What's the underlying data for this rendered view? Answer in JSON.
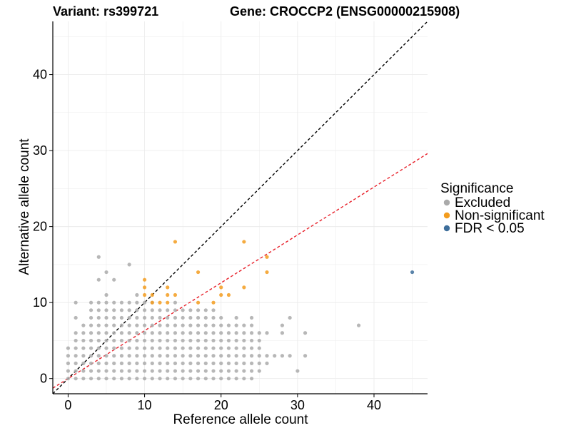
{
  "header": {
    "variant": "Variant: rs399721",
    "gene": "Gene: CROCCP2 (ENSG00000215908)"
  },
  "chart_data": {
    "type": "scatter",
    "xlabel": "Reference allele count",
    "ylabel": "Alternative allele count",
    "xlim": [
      -2,
      47
    ],
    "ylim": [
      -2,
      47
    ],
    "x_ticks": [
      0,
      10,
      20,
      30,
      40
    ],
    "y_ticks": [
      0,
      10,
      20,
      30,
      40
    ],
    "grid": true,
    "legend": {
      "title": "Significance",
      "position": "right",
      "entries": [
        {
          "label": "Excluded",
          "color": "#AAAAAA"
        },
        {
          "label": "Non-significant",
          "color": "#F39C1E"
        },
        {
          "label": "FDR < 0.05",
          "color": "#3E6E9B"
        }
      ]
    },
    "reference_lines": [
      {
        "slope": 1,
        "intercept": 0,
        "color": "#000000",
        "style": "dashed"
      },
      {
        "slope": 0.63,
        "intercept": 0,
        "color": "#E8202A",
        "style": "dashed"
      }
    ],
    "series": [
      {
        "name": "Excluded",
        "color": "#AAAAAA",
        "points": [
          [
            0,
            0
          ],
          [
            0,
            1
          ],
          [
            0,
            2
          ],
          [
            0,
            3
          ],
          [
            0,
            4
          ],
          [
            1,
            0
          ],
          [
            1,
            1
          ],
          [
            1,
            2
          ],
          [
            1,
            3
          ],
          [
            1,
            4
          ],
          [
            1,
            5
          ],
          [
            1,
            6
          ],
          [
            1,
            8
          ],
          [
            1,
            10
          ],
          [
            2,
            0
          ],
          [
            2,
            1
          ],
          [
            2,
            2
          ],
          [
            2,
            3
          ],
          [
            2,
            4
          ],
          [
            2,
            5
          ],
          [
            2,
            6
          ],
          [
            2,
            7
          ],
          [
            3,
            0
          ],
          [
            3,
            1
          ],
          [
            3,
            2
          ],
          [
            3,
            3
          ],
          [
            3,
            4
          ],
          [
            3,
            5
          ],
          [
            3,
            6
          ],
          [
            3,
            7
          ],
          [
            3,
            8
          ],
          [
            3,
            9
          ],
          [
            3,
            10
          ],
          [
            4,
            0
          ],
          [
            4,
            1
          ],
          [
            4,
            2
          ],
          [
            4,
            3
          ],
          [
            4,
            4
          ],
          [
            4,
            5
          ],
          [
            4,
            6
          ],
          [
            4,
            7
          ],
          [
            4,
            8
          ],
          [
            4,
            9
          ],
          [
            4,
            10
          ],
          [
            4,
            13
          ],
          [
            4,
            16
          ],
          [
            5,
            0
          ],
          [
            5,
            1
          ],
          [
            5,
            2
          ],
          [
            5,
            3
          ],
          [
            5,
            4
          ],
          [
            5,
            5
          ],
          [
            5,
            6
          ],
          [
            5,
            7
          ],
          [
            5,
            8
          ],
          [
            5,
            9
          ],
          [
            5,
            10
          ],
          [
            5,
            11
          ],
          [
            5,
            14
          ],
          [
            6,
            0
          ],
          [
            6,
            1
          ],
          [
            6,
            2
          ],
          [
            6,
            3
          ],
          [
            6,
            4
          ],
          [
            6,
            5
          ],
          [
            6,
            6
          ],
          [
            6,
            7
          ],
          [
            6,
            8
          ],
          [
            6,
            9
          ],
          [
            6,
            10
          ],
          [
            6,
            13
          ],
          [
            7,
            0
          ],
          [
            7,
            1
          ],
          [
            7,
            2
          ],
          [
            7,
            3
          ],
          [
            7,
            4
          ],
          [
            7,
            5
          ],
          [
            7,
            6
          ],
          [
            7,
            7
          ],
          [
            7,
            8
          ],
          [
            7,
            9
          ],
          [
            7,
            10
          ],
          [
            8,
            0
          ],
          [
            8,
            1
          ],
          [
            8,
            2
          ],
          [
            8,
            3
          ],
          [
            8,
            4
          ],
          [
            8,
            5
          ],
          [
            8,
            6
          ],
          [
            8,
            7
          ],
          [
            8,
            8
          ],
          [
            8,
            9
          ],
          [
            8,
            10
          ],
          [
            8,
            15
          ],
          [
            9,
            0
          ],
          [
            9,
            1
          ],
          [
            9,
            2
          ],
          [
            9,
            3
          ],
          [
            9,
            4
          ],
          [
            9,
            5
          ],
          [
            9,
            6
          ],
          [
            9,
            7
          ],
          [
            9,
            8
          ],
          [
            9,
            9
          ],
          [
            9,
            10
          ],
          [
            9,
            11
          ],
          [
            10,
            0
          ],
          [
            10,
            1
          ],
          [
            10,
            2
          ],
          [
            10,
            3
          ],
          [
            10,
            4
          ],
          [
            10,
            5
          ],
          [
            10,
            6
          ],
          [
            10,
            7
          ],
          [
            10,
            8
          ],
          [
            10,
            9
          ],
          [
            10,
            10
          ],
          [
            11,
            0
          ],
          [
            11,
            1
          ],
          [
            11,
            2
          ],
          [
            11,
            3
          ],
          [
            11,
            4
          ],
          [
            11,
            5
          ],
          [
            11,
            6
          ],
          [
            11,
            7
          ],
          [
            11,
            8
          ],
          [
            11,
            9
          ],
          [
            11,
            10
          ],
          [
            12,
            0
          ],
          [
            12,
            1
          ],
          [
            12,
            2
          ],
          [
            12,
            3
          ],
          [
            12,
            4
          ],
          [
            12,
            5
          ],
          [
            12,
            6
          ],
          [
            12,
            7
          ],
          [
            12,
            8
          ],
          [
            12,
            9
          ],
          [
            13,
            0
          ],
          [
            13,
            1
          ],
          [
            13,
            2
          ],
          [
            13,
            3
          ],
          [
            13,
            4
          ],
          [
            13,
            5
          ],
          [
            13,
            6
          ],
          [
            13,
            7
          ],
          [
            13,
            8
          ],
          [
            13,
            9
          ],
          [
            14,
            0
          ],
          [
            14,
            1
          ],
          [
            14,
            2
          ],
          [
            14,
            3
          ],
          [
            14,
            4
          ],
          [
            14,
            5
          ],
          [
            14,
            6
          ],
          [
            14,
            7
          ],
          [
            14,
            8
          ],
          [
            14,
            9
          ],
          [
            14,
            10
          ],
          [
            15,
            0
          ],
          [
            15,
            1
          ],
          [
            15,
            2
          ],
          [
            15,
            3
          ],
          [
            15,
            4
          ],
          [
            15,
            5
          ],
          [
            15,
            6
          ],
          [
            15,
            7
          ],
          [
            15,
            8
          ],
          [
            15,
            9
          ],
          [
            16,
            0
          ],
          [
            16,
            1
          ],
          [
            16,
            2
          ],
          [
            16,
            3
          ],
          [
            16,
            4
          ],
          [
            16,
            5
          ],
          [
            16,
            6
          ],
          [
            16,
            7
          ],
          [
            16,
            8
          ],
          [
            16,
            9
          ],
          [
            17,
            0
          ],
          [
            17,
            1
          ],
          [
            17,
            2
          ],
          [
            17,
            3
          ],
          [
            17,
            4
          ],
          [
            17,
            5
          ],
          [
            17,
            6
          ],
          [
            17,
            7
          ],
          [
            17,
            8
          ],
          [
            17,
            9
          ],
          [
            18,
            0
          ],
          [
            18,
            1
          ],
          [
            18,
            2
          ],
          [
            18,
            3
          ],
          [
            18,
            4
          ],
          [
            18,
            5
          ],
          [
            18,
            6
          ],
          [
            18,
            7
          ],
          [
            18,
            8
          ],
          [
            18,
            9
          ],
          [
            19,
            0
          ],
          [
            19,
            1
          ],
          [
            19,
            2
          ],
          [
            19,
            3
          ],
          [
            19,
            4
          ],
          [
            19,
            5
          ],
          [
            19,
            6
          ],
          [
            19,
            7
          ],
          [
            19,
            8
          ],
          [
            19,
            9
          ],
          [
            20,
            0
          ],
          [
            20,
            1
          ],
          [
            20,
            2
          ],
          [
            20,
            3
          ],
          [
            20,
            4
          ],
          [
            20,
            5
          ],
          [
            20,
            6
          ],
          [
            20,
            7
          ],
          [
            20,
            8
          ],
          [
            21,
            0
          ],
          [
            21,
            1
          ],
          [
            21,
            2
          ],
          [
            21,
            3
          ],
          [
            21,
            4
          ],
          [
            21,
            5
          ],
          [
            21,
            6
          ],
          [
            21,
            7
          ],
          [
            22,
            0
          ],
          [
            22,
            1
          ],
          [
            22,
            2
          ],
          [
            22,
            3
          ],
          [
            22,
            4
          ],
          [
            22,
            5
          ],
          [
            22,
            6
          ],
          [
            22,
            7
          ],
          [
            22,
            8
          ],
          [
            23,
            0
          ],
          [
            23,
            1
          ],
          [
            23,
            2
          ],
          [
            23,
            3
          ],
          [
            23,
            4
          ],
          [
            23,
            5
          ],
          [
            23,
            6
          ],
          [
            23,
            7
          ],
          [
            24,
            0
          ],
          [
            24,
            1
          ],
          [
            24,
            2
          ],
          [
            24,
            3
          ],
          [
            24,
            4
          ],
          [
            24,
            5
          ],
          [
            24,
            6
          ],
          [
            24,
            7
          ],
          [
            24,
            8
          ],
          [
            25,
            1
          ],
          [
            25,
            2
          ],
          [
            25,
            3
          ],
          [
            25,
            4
          ],
          [
            25,
            5
          ],
          [
            25,
            6
          ],
          [
            26,
            2
          ],
          [
            26,
            3
          ],
          [
            26,
            6
          ],
          [
            27,
            3
          ],
          [
            28,
            3
          ],
          [
            28,
            6
          ],
          [
            28,
            7
          ],
          [
            29,
            3
          ],
          [
            29,
            8
          ],
          [
            30,
            1
          ],
          [
            31,
            3
          ],
          [
            31,
            6
          ],
          [
            38,
            7
          ]
        ]
      },
      {
        "name": "Non-significant",
        "color": "#F39C1E",
        "points": [
          [
            10,
            11
          ],
          [
            10,
            12
          ],
          [
            10,
            13
          ],
          [
            11,
            10
          ],
          [
            11,
            11
          ],
          [
            12,
            10
          ],
          [
            13,
            10
          ],
          [
            13,
            11
          ],
          [
            13,
            12
          ],
          [
            14,
            11
          ],
          [
            14,
            18
          ],
          [
            17,
            10
          ],
          [
            17,
            14
          ],
          [
            19,
            10
          ],
          [
            20,
            11
          ],
          [
            20,
            12
          ],
          [
            21,
            11
          ],
          [
            23,
            12
          ],
          [
            23,
            18
          ],
          [
            26,
            14
          ],
          [
            26,
            16
          ]
        ]
      },
      {
        "name": "FDR < 0.05",
        "color": "#3E6E9B",
        "points": [
          [
            45,
            14
          ]
        ]
      }
    ]
  }
}
